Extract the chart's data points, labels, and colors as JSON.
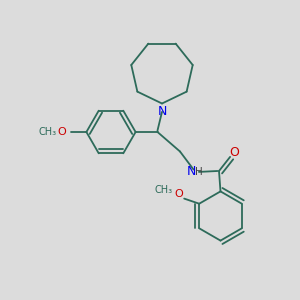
{
  "background_color": "#dcdcdc",
  "bond_color": "#2d6b5a",
  "N_color": "#0000ee",
  "O_color": "#cc0000",
  "fig_width": 3.0,
  "fig_height": 3.0,
  "dpi": 100,
  "xlim": [
    0,
    10
  ],
  "ylim": [
    0,
    10
  ]
}
